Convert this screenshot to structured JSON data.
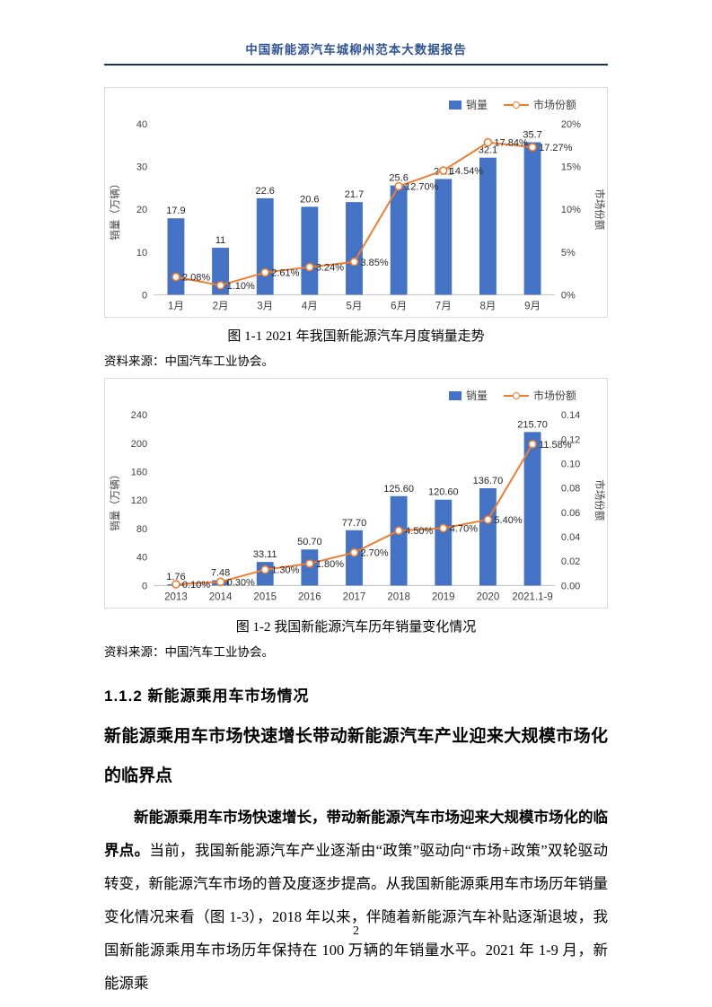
{
  "header": {
    "title": "中国新能源汽车城柳州范本大数据报告"
  },
  "chart_data": [
    {
      "type": "bar-line-combo",
      "title": "图 1-1 2021 年我国新能源汽车月度销量走势",
      "source": "资料来源：中国汽车工业协会。",
      "categories": [
        "1月",
        "2月",
        "3月",
        "4月",
        "5月",
        "6月",
        "7月",
        "8月",
        "9月"
      ],
      "series": [
        {
          "name": "销量",
          "type": "bar",
          "values": [
            17.9,
            11,
            22.6,
            20.6,
            21.7,
            25.6,
            27.1,
            32.1,
            35.7
          ],
          "labels": [
            "17.9",
            "11",
            "22.6",
            "20.6",
            "21.7",
            "25.6",
            "27.1",
            "32.1",
            "35.7"
          ]
        },
        {
          "name": "市场份额",
          "type": "line",
          "values": [
            2.08,
            1.1,
            2.61,
            3.24,
            3.85,
            12.7,
            14.54,
            17.84,
            17.27
          ],
          "labels": [
            "2.08%",
            "1.10%",
            "2.61%",
            "3.24%",
            "3.85%",
            "12.70%",
            "14.54%",
            "17.84%",
            "17.27%"
          ]
        }
      ],
      "left_axis": {
        "label": "销量（万辆）",
        "ticks": [
          "0",
          "10",
          "20",
          "30",
          "40"
        ],
        "max": 40
      },
      "right_axis": {
        "label": "市场份额",
        "ticks": [
          "0%",
          "5%",
          "10%",
          "15%",
          "20%"
        ],
        "max": 20
      },
      "bar_color": "#4472C4",
      "line_color": "#ED7D31",
      "legend_position": "top-right",
      "grid": false
    },
    {
      "type": "bar-line-combo",
      "title": "图 1-2 我国新能源汽车历年销量变化情况",
      "source": "资料来源：中国汽车工业协会。",
      "categories": [
        "2013",
        "2014",
        "2015",
        "2016",
        "2017",
        "2018",
        "2019",
        "2020",
        "2021.1-9"
      ],
      "series": [
        {
          "name": "销量",
          "type": "bar",
          "values": [
            1.76,
            7.48,
            33.11,
            50.7,
            77.7,
            125.6,
            120.6,
            136.7,
            215.7
          ],
          "labels": [
            "1.76",
            "7.48",
            "33.11",
            "50.70",
            "77.70",
            "125.60",
            "120.60",
            "136.70",
            "215.70"
          ]
        },
        {
          "name": "市场份额",
          "type": "line",
          "values": [
            0.1,
            0.3,
            1.3,
            1.8,
            2.7,
            4.5,
            4.7,
            5.4,
            11.58
          ],
          "labels": [
            "0.10%",
            "0.30%",
            "1.30%",
            "1.80%",
            "2.70%",
            "4.50%",
            "4.70%",
            "5.40%",
            "11.58%"
          ]
        }
      ],
      "left_axis": {
        "label": "销量（万辆）",
        "ticks": [
          "0",
          "40",
          "80",
          "120",
          "160",
          "200",
          "240"
        ],
        "max": 240
      },
      "right_axis": {
        "label": "市场份额",
        "ticks": [
          "0.00",
          "0.02",
          "0.04",
          "0.06",
          "0.08",
          "0.10",
          "0.12",
          "0.14"
        ],
        "max": 14
      },
      "bar_color": "#4472C4",
      "line_color": "#ED7D31",
      "legend_position": "top-right",
      "grid": false
    }
  ],
  "sections": {
    "heading": "1.1.2 新能源乘用车市场情况",
    "subheading": "新能源乘用车市场快速增长带动新能源汽车产业迎来大规模市场化的临界点",
    "paragraph_bold": "新能源乘用车市场快速增长，带动新能源汽车市场迎来大规模市场化的临界点。",
    "paragraph_text": "当前，我国新能源汽车产业逐渐由“政策”驱动向“市场+政策”双轮驱动转变，新能源汽车市场的普及度逐步提高。从我国新能源乘用车市场历年销量变化情况来看（图 1-3），2018 年以来，伴随着新能源汽车补贴逐渐退坡，我国新能源乘用车市场历年保持在 100 万辆的年销量水平。2021 年 1-9 月，新能源乘"
  },
  "footer": {
    "page_number": "2"
  }
}
